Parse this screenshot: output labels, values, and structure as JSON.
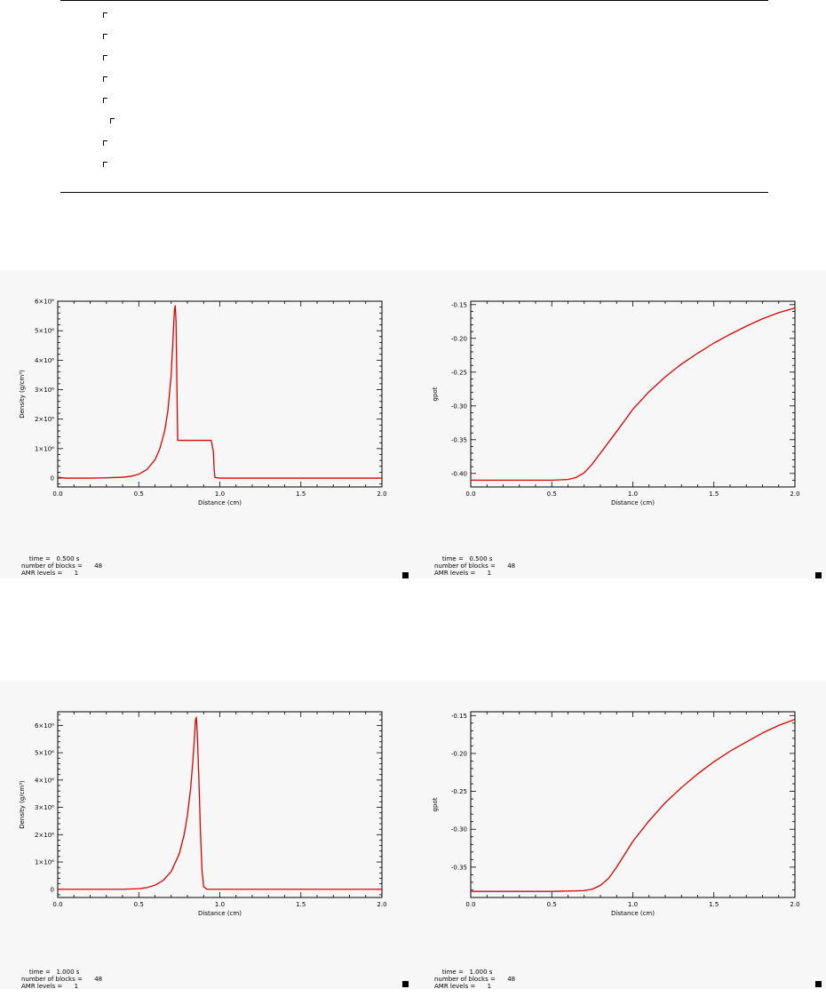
{
  "colors": {
    "curve": "#e00000",
    "panel_bg": "#f7f7f7",
    "axis": "#000000"
  },
  "chart_data": [
    {
      "type": "line",
      "xlabel": "Distance (cm)",
      "ylabel": "Density (g/cm³)",
      "xlim": [
        0.0,
        2.0
      ],
      "ylim": [
        -0.3,
        6.0
      ],
      "y_tick_scale": "×10⁶",
      "x_ticks": [
        "0.0",
        "0.5",
        "1.0",
        "1.5",
        "2.0"
      ],
      "y_ticks": [
        {
          "v": 0,
          "label": "0"
        },
        {
          "v": 1,
          "label": "1×10⁶"
        },
        {
          "v": 2,
          "label": "2×10⁶"
        },
        {
          "v": 3,
          "label": "3×10⁶"
        },
        {
          "v": 4,
          "label": "4×10⁶"
        },
        {
          "v": 5,
          "label": "5×10⁶"
        },
        {
          "v": 6,
          "label": "6×10⁶"
        }
      ],
      "grid": false,
      "series": [
        {
          "x": [
            0.0,
            0.05,
            0.1,
            0.2,
            0.3,
            0.4,
            0.45,
            0.5,
            0.55,
            0.6,
            0.63,
            0.66,
            0.68,
            0.7,
            0.71,
            0.72,
            0.725,
            0.73,
            0.74,
            0.75,
            0.8,
            0.85,
            0.9,
            0.93,
            0.945,
            0.95,
            0.96,
            0.965,
            0.97,
            1.0,
            1.5,
            2.0
          ],
          "y": [
            0.03,
            0.0,
            0.0,
            0.0,
            0.01,
            0.03,
            0.06,
            0.13,
            0.29,
            0.62,
            1.0,
            1.6,
            2.3,
            3.5,
            4.6,
            5.7,
            5.85,
            5.3,
            1.28,
            1.28,
            1.28,
            1.28,
            1.28,
            1.28,
            1.28,
            1.2,
            0.9,
            0.3,
            0.02,
            0.0,
            0.0,
            0.0
          ]
        }
      ]
    },
    {
      "type": "line",
      "xlabel": "Distance (cm)",
      "ylabel": "gpot",
      "xlim": [
        0.0,
        2.0
      ],
      "ylim": [
        -0.42,
        -0.145
      ],
      "x_ticks": [
        "0.0",
        "0.5",
        "1.0",
        "1.5",
        "2.0"
      ],
      "y_ticks": [
        {
          "v": -0.4,
          "label": "-0.40"
        },
        {
          "v": -0.35,
          "label": "-0.35"
        },
        {
          "v": -0.3,
          "label": "-0.30"
        },
        {
          "v": -0.25,
          "label": "-0.25"
        },
        {
          "v": -0.2,
          "label": "-0.20"
        },
        {
          "v": -0.15,
          "label": "-0.15"
        }
      ],
      "grid": false,
      "series": [
        {
          "x": [
            0.0,
            0.5,
            0.6,
            0.65,
            0.7,
            0.75,
            0.8,
            0.9,
            1.0,
            1.1,
            1.2,
            1.3,
            1.4,
            1.5,
            1.6,
            1.7,
            1.8,
            1.9,
            2.0
          ],
          "y": [
            -0.41,
            -0.41,
            -0.409,
            -0.406,
            -0.399,
            -0.386,
            -0.37,
            -0.338,
            -0.305,
            -0.279,
            -0.257,
            -0.238,
            -0.222,
            -0.207,
            -0.194,
            -0.182,
            -0.171,
            -0.162,
            -0.155
          ]
        }
      ]
    },
    {
      "type": "line",
      "xlabel": "Distance (cm)",
      "ylabel": "Density (g/cm³)",
      "xlim": [
        0.0,
        2.0
      ],
      "ylim": [
        -0.3,
        6.5
      ],
      "y_tick_scale": "×10⁶",
      "x_ticks": [
        "0.0",
        "0.5",
        "1.0",
        "1.5",
        "2.0"
      ],
      "y_ticks": [
        {
          "v": 0,
          "label": "0"
        },
        {
          "v": 1,
          "label": "1×10⁶"
        },
        {
          "v": 2,
          "label": "2×10⁶"
        },
        {
          "v": 3,
          "label": "3×10⁶"
        },
        {
          "v": 4,
          "label": "4×10⁶"
        },
        {
          "v": 5,
          "label": "5×10⁶"
        },
        {
          "v": 6,
          "label": "6×10⁶"
        }
      ],
      "grid": false,
      "series": [
        {
          "x": [
            0.0,
            0.2,
            0.4,
            0.5,
            0.55,
            0.6,
            0.65,
            0.7,
            0.75,
            0.78,
            0.8,
            0.82,
            0.835,
            0.845,
            0.85,
            0.855,
            0.86,
            0.87,
            0.88,
            0.89,
            0.9,
            0.92,
            1.0,
            1.5,
            2.0
          ],
          "y": [
            0.0,
            0.0,
            0.0,
            0.02,
            0.06,
            0.15,
            0.32,
            0.65,
            1.3,
            2.0,
            2.7,
            3.7,
            4.8,
            5.7,
            6.2,
            6.3,
            5.8,
            4.2,
            2.2,
            0.7,
            0.1,
            0.0,
            0.0,
            0.0,
            0.0
          ]
        }
      ]
    },
    {
      "type": "line",
      "xlabel": "Distance (cm)",
      "ylabel": "gpot",
      "xlim": [
        0.0,
        2.0
      ],
      "ylim": [
        -0.39,
        -0.145
      ],
      "x_ticks": [
        "0.0",
        "0.5",
        "1.0",
        "1.5",
        "2.0"
      ],
      "y_ticks": [
        {
          "v": -0.35,
          "label": "-0.35"
        },
        {
          "v": -0.3,
          "label": "-0.30"
        },
        {
          "v": -0.25,
          "label": "-0.25"
        },
        {
          "v": -0.2,
          "label": "-0.20"
        },
        {
          "v": -0.15,
          "label": "-0.15"
        }
      ],
      "grid": false,
      "series": [
        {
          "x": [
            0.0,
            0.5,
            0.7,
            0.75,
            0.8,
            0.85,
            0.9,
            0.95,
            1.0,
            1.1,
            1.2,
            1.3,
            1.4,
            1.5,
            1.6,
            1.7,
            1.8,
            1.9,
            2.0
          ],
          "y": [
            -0.382,
            -0.382,
            -0.381,
            -0.379,
            -0.374,
            -0.365,
            -0.35,
            -0.333,
            -0.316,
            -0.289,
            -0.265,
            -0.245,
            -0.227,
            -0.211,
            -0.197,
            -0.185,
            -0.173,
            -0.163,
            -0.155
          ]
        }
      ]
    }
  ],
  "panels": [
    {
      "time_label": "time =",
      "time_value": "0.500 s",
      "blocks_label": "number of blocks =",
      "blocks_value": "48",
      "amr_label": "AMR levels =",
      "amr_value": "1"
    },
    {
      "time_label": "time =",
      "time_value": "0.500 s",
      "blocks_label": "number of blocks =",
      "blocks_value": "48",
      "amr_label": "AMR levels =",
      "amr_value": "1"
    },
    {
      "time_label": "time =",
      "time_value": "1.000 s",
      "blocks_label": "number of blocks =",
      "blocks_value": "48",
      "amr_label": "AMR levels =",
      "amr_value": "1"
    },
    {
      "time_label": "time =",
      "time_value": "1.000 s",
      "blocks_label": "number of blocks =",
      "blocks_value": "48",
      "amr_label": "AMR levels =",
      "amr_value": "1"
    }
  ]
}
